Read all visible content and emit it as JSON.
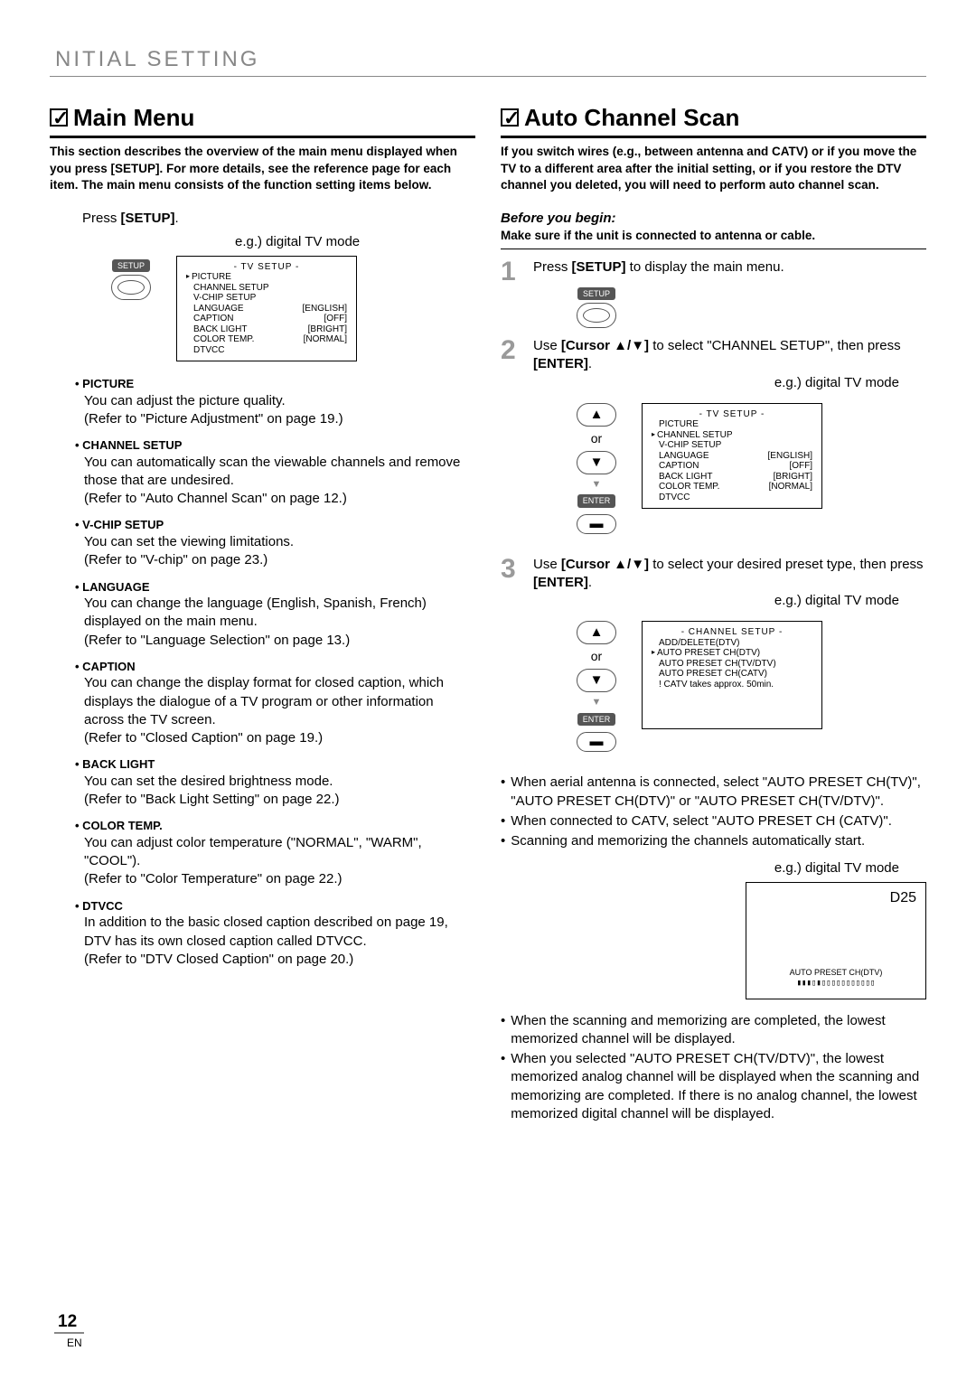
{
  "header": "NITIAL  SETTING",
  "left": {
    "title": "Main Menu",
    "intro": "This section describes the overview of the main menu displayed when you press [SETUP]. For more details, see the reference page for each item. The main menu consists of the function setting items below.",
    "press": "Press ",
    "press_btn": "[SETUP]",
    "press_end": ".",
    "eg": "e.g.) digital TV mode",
    "setup_label": "SETUP",
    "menu": {
      "title": "-  TV SETUP  -",
      "rows": [
        {
          "k": "PICTURE",
          "v": "",
          "ptr": true
        },
        {
          "k": "CHANNEL SETUP",
          "v": ""
        },
        {
          "k": "V-CHIP  SETUP",
          "v": ""
        },
        {
          "k": "LANGUAGE",
          "v": "[ENGLISH]"
        },
        {
          "k": "CAPTION",
          "v": "[OFF]"
        },
        {
          "k": "BACK  LIGHT",
          "v": "[BRIGHT]"
        },
        {
          "k": "COLOR  TEMP.",
          "v": "[NORMAL]"
        },
        {
          "k": "DTVCC",
          "v": ""
        }
      ]
    },
    "items": [
      {
        "t": "PICTURE",
        "d": "You can adjust the picture quality.\n(Refer to \"Picture Adjustment\" on page 19.)"
      },
      {
        "t": "CHANNEL SETUP",
        "d": "You can automatically scan the viewable channels and remove those that are undesired.\n(Refer to \"Auto Channel Scan\" on page 12.)"
      },
      {
        "t": "V-CHIP SETUP",
        "d": "You can set the viewing limitations.\n(Refer to \"V-chip\" on page 23.)"
      },
      {
        "t": "LANGUAGE",
        "d": "You can change the language (English, Spanish, French) displayed on the main menu.\n(Refer to \"Language Selection\" on page 13.)"
      },
      {
        "t": "CAPTION",
        "d": "You can change the display format for closed caption, which displays the dialogue of a TV program or other information across the TV screen.\n(Refer to \"Closed Caption\" on page 19.)"
      },
      {
        "t": "BACK LIGHT",
        "d": "You can set the desired brightness mode.\n(Refer to \"Back Light Setting\" on page 22.)"
      },
      {
        "t": "COLOR TEMP.",
        "d": "You can adjust color temperature (\"NORMAL\", \"WARM\", \"COOL\").\n(Refer to \"Color Temperature\" on page 22.)"
      },
      {
        "t": "DTVCC",
        "d": "In addition to the basic closed caption described on page 19, DTV has its own closed caption called DTVCC.\n(Refer to \"DTV Closed Caption\" on page 20.)"
      }
    ]
  },
  "right": {
    "title": "Auto Channel Scan",
    "intro": "If you switch wires (e.g., between antenna and CATV) or if you move the TV to a different area after the initial setting, or if you restore the DTV channel you deleted, you will need to perform auto channel scan.",
    "before": "Before you begin:",
    "before_note": "Make sure if the unit is connected to antenna or cable.",
    "step1": "Press ",
    "step1_b": "[SETUP]",
    "step1_end": " to display the main menu.",
    "setup_label": "SETUP",
    "step2_a": "Use ",
    "step2_b": "[Cursor ▲/▼]",
    "step2_c": " to select \"CHANNEL SETUP\", then press ",
    "step2_d": "[ENTER]",
    "step2_e": ".",
    "eg": "e.g.) digital TV mode",
    "or": "or",
    "enter_label": "ENTER",
    "menu2": {
      "title": "-  TV SETUP  -",
      "rows": [
        {
          "k": "PICTURE",
          "v": ""
        },
        {
          "k": "CHANNEL SETUP",
          "v": "",
          "ptr": true
        },
        {
          "k": "V-CHIP  SETUP",
          "v": ""
        },
        {
          "k": "LANGUAGE",
          "v": "[ENGLISH]"
        },
        {
          "k": "CAPTION",
          "v": "[OFF]"
        },
        {
          "k": "BACK  LIGHT",
          "v": "[BRIGHT]"
        },
        {
          "k": "COLOR  TEMP.",
          "v": "[NORMAL]"
        },
        {
          "k": "DTVCC",
          "v": ""
        }
      ]
    },
    "step3_a": "Use ",
    "step3_b": "[Cursor ▲/▼]",
    "step3_c": " to select your desired preset type, then press ",
    "step3_d": "[ENTER]",
    "step3_e": ".",
    "menu3": {
      "title": "- CHANNEL SETUP -",
      "rows": [
        {
          "k": "ADD/DELETE(DTV)",
          "v": ""
        },
        {
          "k": "AUTO PRESET CH(DTV)",
          "v": "",
          "ptr": true
        },
        {
          "k": "AUTO PRESET CH(TV/DTV)",
          "v": ""
        },
        {
          "k": "AUTO PRESET CH(CATV)",
          "v": ""
        },
        {
          "k": "! CATV takes approx. 50min.",
          "v": ""
        }
      ]
    },
    "bullets1": [
      "When aerial antenna is connected, select \"AUTO PRESET CH(TV)\", \"AUTO PRESET CH(DTV)\" or \"AUTO PRESET CH(TV/DTV)\".",
      "When connected to CATV, select \"AUTO PRESET CH (CATV)\".",
      "Scanning and memorizing the channels automatically start."
    ],
    "scan": {
      "ch": "D25",
      "label": "AUTO PRESET CH(DTV)",
      "bar": "▮▮▮▯▮▯▯▯▯▯▯▯▯▯▯▯"
    },
    "bullets2": [
      "When the scanning and memorizing are completed, the lowest memorized channel will be displayed.",
      "When you selected \"AUTO PRESET CH(TV/DTV)\", the lowest memorized analog channel will be displayed when the scanning and memorizing are completed. If there is no analog channel, the lowest memorized digital channel will be displayed."
    ]
  },
  "page": {
    "num": "12",
    "en": "EN"
  }
}
